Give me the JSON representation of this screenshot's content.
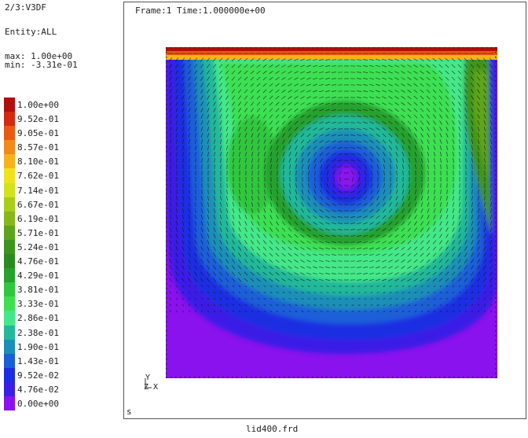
{
  "info": {
    "dataset": "2/3:V3DF",
    "entity": "Entity:ALL",
    "max": "max: 1.00e+00",
    "min": "min: -3.31e-01"
  },
  "legend": {
    "entries": [
      {
        "label": "1.00e+00",
        "color": "#b20e0e"
      },
      {
        "label": "9.52e-01",
        "color": "#d42a10"
      },
      {
        "label": "9.05e-01",
        "color": "#e85a12"
      },
      {
        "label": "8.57e-01",
        "color": "#f08a18"
      },
      {
        "label": "8.10e-01",
        "color": "#f6b21a"
      },
      {
        "label": "7.62e-01",
        "color": "#f2e21e"
      },
      {
        "label": "7.14e-01",
        "color": "#d2e21c"
      },
      {
        "label": "6.67e-01",
        "color": "#aacd18"
      },
      {
        "label": "6.19e-01",
        "color": "#86b81a"
      },
      {
        "label": "5.71e-01",
        "color": "#5fa51c"
      },
      {
        "label": "5.24e-01",
        "color": "#3f941c"
      },
      {
        "label": "4.76e-01",
        "color": "#2b8b20"
      },
      {
        "label": "4.29e-01",
        "color": "#27a12e"
      },
      {
        "label": "3.81e-01",
        "color": "#30c640"
      },
      {
        "label": "3.33e-01",
        "color": "#3ee052"
      },
      {
        "label": "2.86e-01",
        "color": "#44e888"
      },
      {
        "label": "2.38e-01",
        "color": "#23b89a"
      },
      {
        "label": "1.90e-01",
        "color": "#1a8fb8"
      },
      {
        "label": "1.43e-01",
        "color": "#1a5fd8"
      },
      {
        "label": "9.52e-02",
        "color": "#1b2ee2"
      },
      {
        "label": "4.76e-02",
        "color": "#3a1ee6"
      },
      {
        "label": "0.00e+00",
        "color": "#8a12ee"
      }
    ]
  },
  "viewport": {
    "frame_label": "Frame:1 Time:1.000000e+00",
    "corner_label": "s",
    "axis_y": "Y",
    "axis_zx": "Z X"
  },
  "filename": "lid400.frd"
}
